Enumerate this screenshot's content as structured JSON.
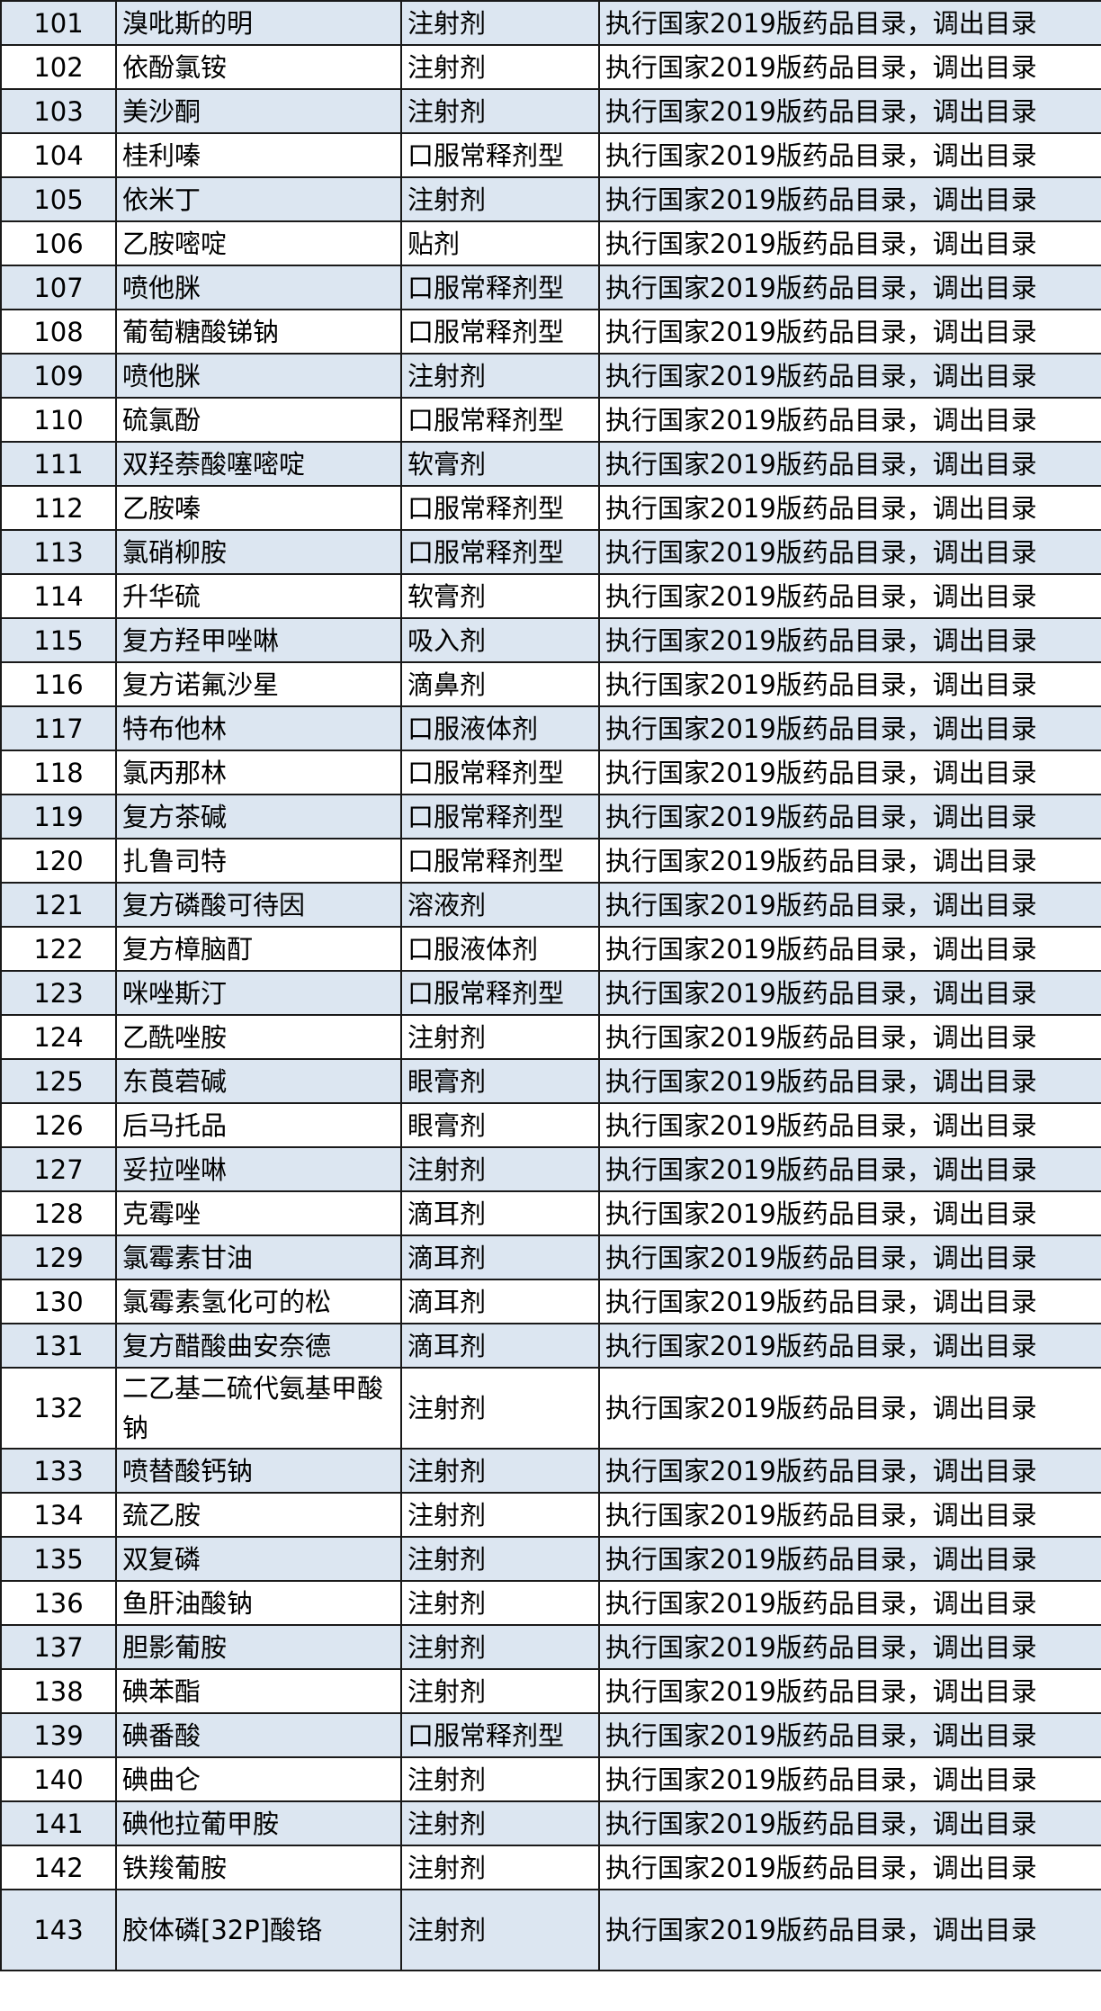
{
  "table": {
    "row_colors": {
      "odd": "#dce6f1",
      "even": "#ffffff"
    },
    "rows": [
      [
        "101",
        "溴吡斯的明",
        "注射剂",
        "执行国家2019版药品目录，调出目录"
      ],
      [
        "102",
        "依酚氯铵",
        "注射剂",
        "执行国家2019版药品目录，调出目录"
      ],
      [
        "103",
        "美沙酮",
        "注射剂",
        "执行国家2019版药品目录，调出目录"
      ],
      [
        "104",
        "桂利嗪",
        "口服常释剂型",
        "执行国家2019版药品目录，调出目录"
      ],
      [
        "105",
        "依米丁",
        "注射剂",
        "执行国家2019版药品目录，调出目录"
      ],
      [
        "106",
        "乙胺嘧啶",
        "贴剂",
        "执行国家2019版药品目录，调出目录"
      ],
      [
        "107",
        "喷他脒",
        "口服常释剂型",
        "执行国家2019版药品目录，调出目录"
      ],
      [
        "108",
        "葡萄糖酸锑钠",
        "口服常释剂型",
        "执行国家2019版药品目录，调出目录"
      ],
      [
        "109",
        "喷他脒",
        "注射剂",
        "执行国家2019版药品目录，调出目录"
      ],
      [
        "110",
        "硫氯酚",
        "口服常释剂型",
        "执行国家2019版药品目录，调出目录"
      ],
      [
        "111",
        "双羟萘酸噻嘧啶",
        "软膏剂",
        "执行国家2019版药品目录，调出目录"
      ],
      [
        "112",
        "乙胺嗪",
        "口服常释剂型",
        "执行国家2019版药品目录，调出目录"
      ],
      [
        "113",
        "氯硝柳胺",
        "口服常释剂型",
        "执行国家2019版药品目录，调出目录"
      ],
      [
        "114",
        "升华硫",
        "软膏剂",
        "执行国家2019版药品目录，调出目录"
      ],
      [
        "115",
        "复方羟甲唑啉",
        "吸入剂",
        "执行国家2019版药品目录，调出目录"
      ],
      [
        "116",
        "复方诺氟沙星",
        "滴鼻剂",
        "执行国家2019版药品目录，调出目录"
      ],
      [
        "117",
        "特布他林",
        "口服液体剂",
        "执行国家2019版药品目录，调出目录"
      ],
      [
        "118",
        "氯丙那林",
        "口服常释剂型",
        "执行国家2019版药品目录，调出目录"
      ],
      [
        "119",
        "复方茶碱",
        "口服常释剂型",
        "执行国家2019版药品目录，调出目录"
      ],
      [
        "120",
        "扎鲁司特",
        "口服常释剂型",
        "执行国家2019版药品目录，调出目录"
      ],
      [
        "121",
        "复方磷酸可待因",
        "溶液剂",
        "执行国家2019版药品目录，调出目录"
      ],
      [
        "122",
        "复方樟脑酊",
        "口服液体剂",
        "执行国家2019版药品目录，调出目录"
      ],
      [
        "123",
        "咪唑斯汀",
        "口服常释剂型",
        "执行国家2019版药品目录，调出目录"
      ],
      [
        "124",
        "乙酰唑胺",
        "注射剂",
        "执行国家2019版药品目录，调出目录"
      ],
      [
        "125",
        "东莨菪碱",
        "眼膏剂",
        "执行国家2019版药品目录，调出目录"
      ],
      [
        "126",
        "后马托品",
        "眼膏剂",
        "执行国家2019版药品目录，调出目录"
      ],
      [
        "127",
        "妥拉唑啉",
        "注射剂",
        "执行国家2019版药品目录，调出目录"
      ],
      [
        "128",
        "克霉唑",
        "滴耳剂",
        "执行国家2019版药品目录，调出目录"
      ],
      [
        "129",
        "氯霉素甘油",
        "滴耳剂",
        "执行国家2019版药品目录，调出目录"
      ],
      [
        "130",
        "氯霉素氢化可的松",
        "滴耳剂",
        "执行国家2019版药品目录，调出目录"
      ],
      [
        "131",
        "复方醋酸曲安奈德",
        "滴耳剂",
        "执行国家2019版药品目录，调出目录"
      ],
      [
        "132",
        "二乙基二硫代氨基甲酸钠",
        "注射剂",
        "执行国家2019版药品目录，调出目录"
      ],
      [
        "133",
        "喷替酸钙钠",
        "注射剂",
        "执行国家2019版药品目录，调出目录"
      ],
      [
        "134",
        "巯乙胺",
        "注射剂",
        "执行国家2019版药品目录，调出目录"
      ],
      [
        "135",
        "双复磷",
        "注射剂",
        "执行国家2019版药品目录，调出目录"
      ],
      [
        "136",
        "鱼肝油酸钠",
        "注射剂",
        "执行国家2019版药品目录，调出目录"
      ],
      [
        "137",
        "胆影葡胺",
        "注射剂",
        "执行国家2019版药品目录，调出目录"
      ],
      [
        "138",
        "碘苯酯",
        "注射剂",
        "执行国家2019版药品目录，调出目录"
      ],
      [
        "139",
        "碘番酸",
        "口服常释剂型",
        "执行国家2019版药品目录，调出目录"
      ],
      [
        "140",
        "碘曲仑",
        "注射剂",
        "执行国家2019版药品目录，调出目录"
      ],
      [
        "141",
        "碘他拉葡甲胺",
        "注射剂",
        "执行国家2019版药品目录，调出目录"
      ],
      [
        "142",
        "铁羧葡胺",
        "注射剂",
        "执行国家2019版药品目录，调出目录"
      ],
      [
        "143",
        "胶体磷[32P]酸铬",
        "注射剂",
        "执行国家2019版药品目录，调出目录"
      ]
    ]
  }
}
